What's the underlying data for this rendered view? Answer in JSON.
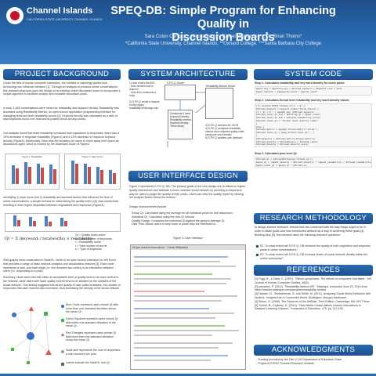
{
  "header": {
    "logo_name": "Channel Islands",
    "logo_sub": "CALIFORNIA STATE UNIVERSITY CHANNEL ISLANDS",
    "title_line1": "SPEQ-DB: Simple Program for Enhancing Quality in",
    "title_line2": "Discussion Boards",
    "authors": "Sara Colon Cerezo*°, Nicole Dubin*, Rafael Hernandez*°, Dr. Brian Thoms*",
    "affiliations": "*California State University, Channel Islands, **Oxnard College, ***Santa Barbara City College"
  },
  "sections": {
    "background": "PROJECT BACKGROUND",
    "architecture": "SYSTEM ARCHITECTURE",
    "code": "SYSTEM CODE",
    "interface": "USER INTERFACE DESIGN",
    "research": "RESEARCH METHODOLOGY",
    "references": "REFERENCES",
    "acknowledgments": "ACKNOWLEDGMENTS"
  },
  "background": {
    "p1": "Under the field of human computer interaction, the subfield of captology guides how technology can influence behavior [1]. Through an analysis of previous online conversations, this research improves upon the design of an existing online discussion board to incorporate a simple algorithm to facilitate analytic and readable discussion posts.",
    "p2": "In total, 1,625 conversations were mined for readability and keyword density. Readability was accessed using Readability Metrics, an open-source application programming interface for managing texts and their readability scores [2]. Keyword density was calculated as a ratio of total keywords found over total words posted minus all stop-words.",
    "p3": "Our analysis found that while readability increased from signatures to responses, there was a 19% decrease in response readability (Figure1) and a 12% decrease in response keyword density (Figure2). Additionally, there was the tendency for users to move away from topics as discussions aged, which is evident by the downward slope of Figure2.",
    "chart1_title": "Figure 1: Readability",
    "chart2_title": "Figure 2: Topic Focus",
    "p4": "Identifying 1) topic focus and 2) readability as important factors that influence the flow of online conversations, a simple formula for determining the quality index (QI) was constructed resulting in even higher disparities between originations and responses (Figure3).",
    "formula_lhs": "QI =",
    "formula_rhs": "Σ (keywordᵢ / totalwords) × readability",
    "legend": [
      "QI = Quality index score",
      "k = Total number of keywords",
      "r = Readability score",
      "t = Total number of words",
      "n = Type of keywords"
    ],
    "p5": "SNA graphs were constructed in NodeXL, which is an open source extension for MS Excel that provides a range of basic network analytics and visualization features [3]. Each node represents a user, and each edge (i.e. line between two nodes) is an interaction between users (i.e. responding to a post).",
    "p6": "Summary: Most users who fall within an acceptable level of quality tend to be more central to the network, while users with lower quality scores tend to be situated on the outskirts of the social network. This finding suggests that as the quality of user posts increases, the number of responses that user receives also increases, thus increasing the density of the social network.",
    "sna_legend": [
      "Blue Circle represent users whose QI falls more than one standard deviation above the mean QI.",
      "Green Squares represent users whose QI falls within one standard deviation of the mean QI.",
      "Red Triangles represent users whose QI falls more than one standard deviation below the mean QI.",
      "Node size represents the sum of responses a user received per post.",
      "Labels indicate the NodeXL and QI."
    ]
  },
  "architecture": {
    "steps": [
      "1) User enters the ASC",
      "  - User decides how to respond",
      "  - User then constructs a reply",
      "2) S.P.E.Q sends a request to http://speq-readability.herokuapp.com",
      "3) S.P.E.Q receives the JSON",
      "4) S.P.E.Q computes readability metrics and compares quality index using user word density",
      "5) S.P.E.Q updates user interface"
    ],
    "boxes": {
      "client": "S.P.E.Q. Server",
      "api": "Readability Metrics Server",
      "logic": "Constructs & send Keyword Density, Readability metrics, Keyword density, Times library"
    }
  },
  "code": {
    "step1": "Step 1: Calculates readability and key word density for users posts",
    "step2": "Step 2: Calculates thread level readability and key word density values",
    "step3": "Step 3: Calculates post level QI:",
    "lines1": [
      "$post_key = $posting_key + $thread_keyword + $topword_list + $ite",
      "$post_density = $keywords_count / $words_count"
    ],
    "lines2": [
      "if( count($_POST['thread_id']) > 0) {",
      "  $thread_keyword = keyword_index('forum_topics');",
      "  if ( $l > 0 ) { speqdb_key ($thread_keyword) ...",
      "  $thread_level_qi_avg = $posting_qi / $post_count;",
      "  $thread_level_qi_sum = $thread_readability_score;",
      "  $thread_level_qi = 'thread level quality index'",
      "}",
      "else {",
      "  $thread_metric = speqdb_thread_metric('forum');",
      "  $thread_level_qi = speq_thread_level_qi(...)",
      "}",
      "$threadscore = $thread_metric[thread_metric];",
      "$thread_quality = $threadscore / $thread_count;",
      "$thread_density = $thread_density_score;"
    ],
    "lines3": [
      "$thread_qi = $threadInfluence['thread_qi'];",
      "$post_qi = ($post_density / $thread_density) * ($post_readability / $thread_readability);",
      "$post_level_qi = $post_qi * $thread_qi;"
    ]
  },
  "interface": {
    "p1": "Figure 4 represents S.P.E.Q. DB. The primary goals of the new design are to influence higher quality interactions and facilitate a more cohesive social network by providing a responsive way for users to judge the quality of their posts. Users can view the quality report by clicking the Analyze Button below the textbox.",
    "p2": "Design improvements include:",
    "bullets": [
      "Group QI: Calculated using the average for all individual posts for that discussion.",
      "Individual QI: Calculated using the new QI formula.",
      "Quality Gauge: Compares the individual QI against the group's average QI.",
      "User Pins: Allows users to keep track of posts they are interested in."
    ],
    "figure_caption": "Figure 4: User Interface",
    "screenshot_title": "All you need to know about... Check Wikipedia!"
  },
  "research": {
    "p1": "In design science research, researchers are concerned with the way things ought to be in order to attain goals and how constructed artifacts as a way of achieving these goals [4]. Building atop [5], this research asks the following research questions:",
    "rq1": "R1: To what extent will S.P.E.Q. DB enhance the quality of both origination and response posts in online conversations?",
    "rq2": "R2: To what extent will S.P.E.Q. DB increase levels of social network density within the online community?"
  },
  "references": [
    "[1] Fogg, B., & Nass, C. (1997). \"Silicon sycophants: The effects of computers that flatter.\" Int'l Journal of Human-Computer Studies, 46(5).",
    "[2] panoptes, P. (2012). \"Readability Metrics API.\" Mashape. Accessed June 15, 2016 from https://market.mashape.com/panoptes/readability-metrics",
    "[3] Hansen, D., Shneiderman, B. and Smith, M. (2011). Analyzing Social Media Networks with NodeXL: Insights from a Connected World. Burlington: Morgan Kaufmann.",
    "[4] Simon, H. (1996). The Sciences of the Artificial: Third Edition. Cambridge, MA: MIT Press.",
    "[5] Thoms, B., Eryilmaz, E. (2014). \"How Media Choice Affects Learner Interactions in Distance Learning Classes,\" Computers & Education, v75, pp. 112-126."
  ],
  "acknowledgments": [
    "- Funding provided by the Title V, US Department of Education Grant",
    "- Project ACCESO Summer Research Institute"
  ],
  "colors": {
    "header": "#1e4f8c",
    "accent": "#2a6bb0",
    "bar1": "#4f7fbf",
    "bar2": "#c0504d",
    "bar3": "#9bbb59"
  }
}
